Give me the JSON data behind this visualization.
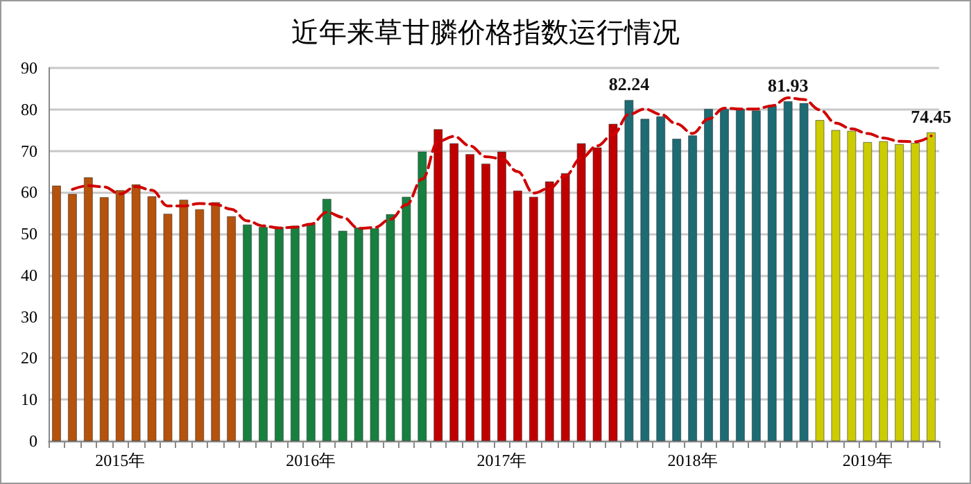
{
  "chart_data": {
    "type": "bar",
    "title": "近年来草甘膦价格指数运行情况",
    "categories": [
      null,
      null,
      null,
      null,
      "2015年",
      null,
      null,
      null,
      null,
      null,
      null,
      null,
      null,
      null,
      null,
      null,
      "2016年",
      null,
      null,
      null,
      null,
      null,
      null,
      null,
      null,
      null,
      null,
      null,
      "2017年",
      null,
      null,
      null,
      null,
      null,
      null,
      null,
      null,
      null,
      null,
      null,
      "2018年",
      null,
      null,
      null,
      null,
      null,
      null,
      null,
      null,
      null,
      null,
      "2019年",
      null,
      null,
      null,
      null
    ],
    "series": [
      {
        "colors": [
          "#b5520c",
          "#b5520c",
          "#b5520c",
          "#b5520c",
          "#b5520c",
          "#b5520c",
          "#b5520c",
          "#b5520c",
          "#b5520c",
          "#b5520c",
          "#b5520c",
          "#b5520c",
          "#17803f",
          "#17803f",
          "#17803f",
          "#17803f",
          "#17803f",
          "#17803f",
          "#17803f",
          "#17803f",
          "#17803f",
          "#17803f",
          "#17803f",
          "#17803f",
          "#c00000",
          "#c00000",
          "#c00000",
          "#c00000",
          "#c00000",
          "#c00000",
          "#c00000",
          "#c00000",
          "#c00000",
          "#c00000",
          "#c00000",
          "#c00000",
          "#1d6b75",
          "#1d6b75",
          "#1d6b75",
          "#1d6b75",
          "#1d6b75",
          "#1d6b75",
          "#1d6b75",
          "#1d6b75",
          "#1d6b75",
          "#1d6b75",
          "#1d6b75",
          "#1d6b75",
          "#cccc00",
          "#cccc00",
          "#cccc00",
          "#cccc00",
          "#cccc00",
          "#cccc00",
          "#cccc00",
          "#cccc00"
        ],
        "values": [
          61.6,
          59.6,
          63.6,
          58.8,
          60.5,
          61.9,
          59,
          54.8,
          58.2,
          55.9,
          57.6,
          54.2,
          52.2,
          51.6,
          51.6,
          51.9,
          52.3,
          58.4,
          50.7,
          51.5,
          51.3,
          54.7,
          58.9,
          69.8,
          75.2,
          71.8,
          69.2,
          66.9,
          69.8,
          60.4,
          58.9,
          62.6,
          64.6,
          71.8,
          70.8,
          76.5,
          82.24,
          77.7,
          78.3,
          72.9,
          73.7,
          80.1,
          80.1,
          80.1,
          79.7,
          81,
          81.93,
          81.5,
          77.4,
          75,
          74.8,
          72.1,
          72.3,
          71.6,
          71.9,
          74.45
        ],
        "value_labels": [
          null,
          null,
          null,
          null,
          null,
          null,
          null,
          null,
          null,
          null,
          null,
          null,
          null,
          null,
          null,
          null,
          null,
          null,
          null,
          null,
          null,
          null,
          null,
          null,
          null,
          null,
          null,
          null,
          null,
          null,
          null,
          null,
          null,
          null,
          null,
          null,
          "82.24",
          null,
          null,
          null,
          null,
          null,
          null,
          null,
          null,
          null,
          "81.93",
          null,
          null,
          null,
          null,
          null,
          null,
          null,
          null,
          "74.45"
        ]
      },
      {
        "type": "line",
        "color": "#d00000",
        "line_style": "dashed",
        "marker": "none",
        "values": [
          null,
          60.7,
          61.6,
          61.3,
          59.6,
          61.4,
          60.5,
          56.7,
          56.7,
          57.3,
          57.1,
          55.9,
          53.1,
          51.9,
          51.4,
          51.6,
          52.3,
          55.2,
          54,
          51.3,
          51.5,
          53.5,
          57,
          63.2,
          72.3,
          73.5,
          71.2,
          68.6,
          68.1,
          65,
          59.8,
          61,
          64,
          68.3,
          71.2,
          74,
          78.8,
          80.1,
          78.8,
          76.5,
          74.2,
          77.7,
          80.3,
          80.1,
          80.1,
          80.9,
          82.8,
          82.4,
          79.9,
          76.7,
          75.3,
          74.2,
          73.1,
          72.3,
          72.2,
          73.6
        ]
      }
    ],
    "ylim": [
      0,
      90
    ],
    "yticks": [
      0,
      10,
      20,
      30,
      40,
      50,
      60,
      70,
      80,
      90
    ],
    "grid": "y"
  }
}
